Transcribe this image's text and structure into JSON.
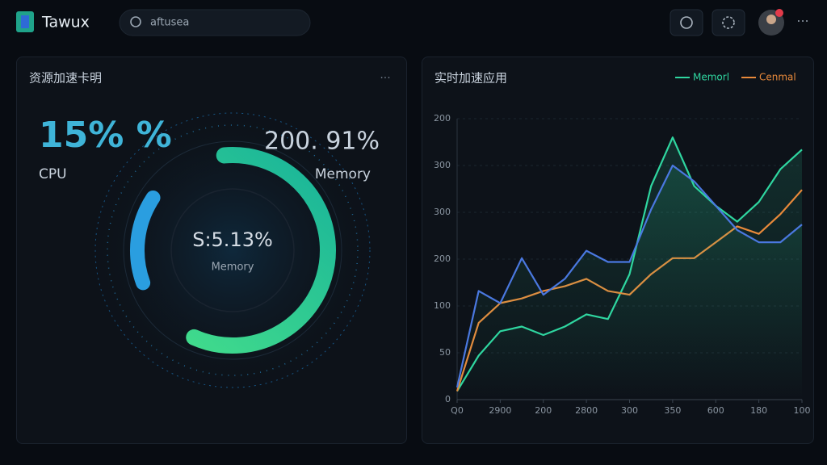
{
  "header": {
    "brand": "Tawux",
    "search": "aftusea"
  },
  "left_panel": {
    "title": "资源加速卡明",
    "cpu_value": "15% %",
    "cpu_label": "CPU",
    "memory_value": "200. 91%",
    "memory_label": "Memory",
    "center_value": "S:5.13%",
    "center_label": "Memory"
  },
  "right_panel": {
    "title": "实时加速应用",
    "chart_data": {
      "type": "line",
      "x": [
        0,
        1,
        2,
        3,
        4,
        5,
        6,
        7,
        8,
        9,
        10,
        11,
        12,
        13,
        14,
        15,
        16
      ],
      "xlim": [
        0,
        16
      ],
      "xticks": [
        {
          "value": 0,
          "label": "Q0"
        },
        {
          "value": 2,
          "label": "2900"
        },
        {
          "value": 4,
          "label": "200"
        },
        {
          "value": 6,
          "label": "2800"
        },
        {
          "value": 8,
          "label": "300"
        },
        {
          "value": 10,
          "label": "350"
        },
        {
          "value": 12,
          "label": "600"
        },
        {
          "value": 14,
          "label": "180"
        },
        {
          "value": 16,
          "label": "100"
        }
      ],
      "ylim": [
        0,
        300
      ],
      "yticks": [
        0,
        50,
        100,
        {
          "value": 150,
          "label": "200"
        },
        {
          "value": 200,
          "label": "300"
        },
        {
          "value": 250,
          "label": "300"
        },
        {
          "value": 300,
          "label": "200"
        }
      ],
      "grid": true,
      "series": [
        {
          "name": "Memorl",
          "color": "#2fd6a0",
          "values": [
            9,
            47,
            73,
            78,
            69,
            78,
            91,
            86,
            134,
            228,
            280,
            228,
            207,
            190,
            211,
            246,
            267
          ]
        },
        {
          "name": "Cenmal",
          "color": "#e8893a",
          "values": [
            9,
            82,
            103,
            108,
            116,
            121,
            129,
            116,
            112,
            134,
            151,
            151,
            168,
            185,
            177,
            198,
            224
          ]
        },
        {
          "color": "#4a78e0",
          "values": [
            13,
            116,
            103,
            151,
            112,
            129,
            159,
            147,
            147,
            203,
            250,
            233,
            207,
            181,
            168,
            168,
            187
          ]
        }
      ]
    }
  }
}
